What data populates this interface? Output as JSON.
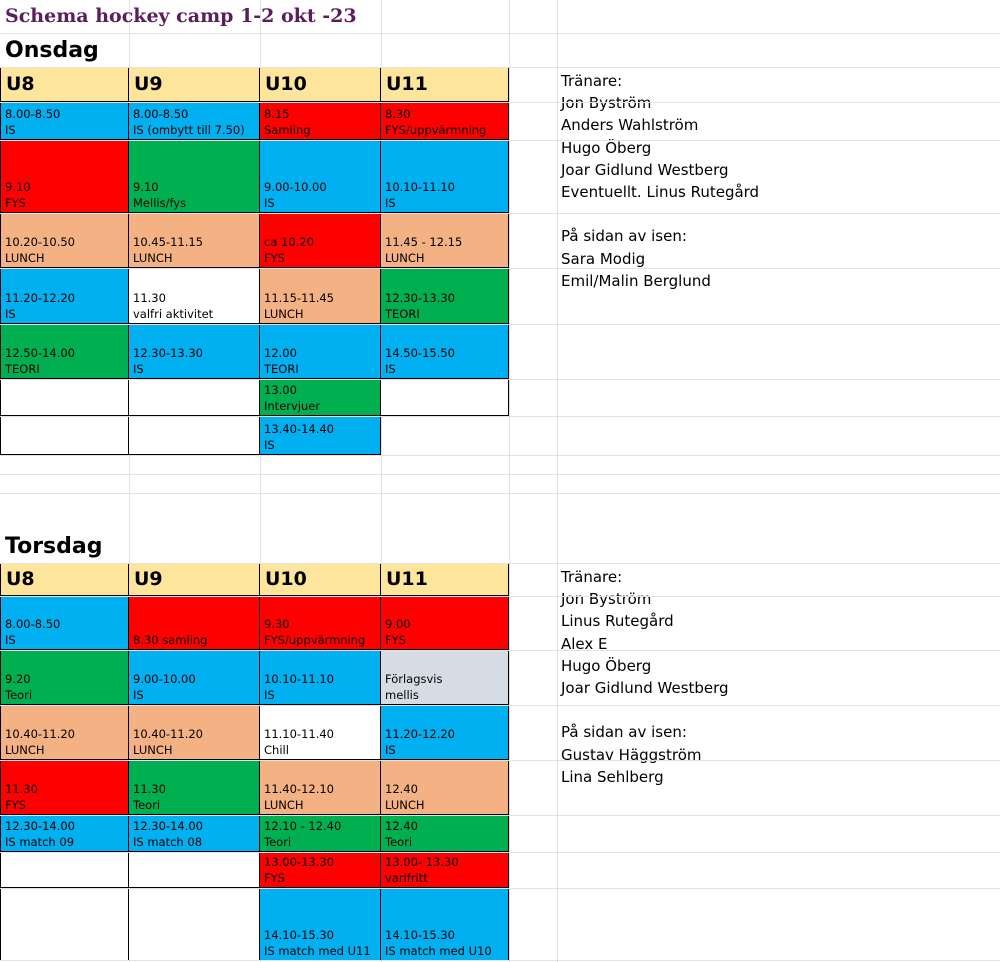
{
  "title": "Schema hockey camp 1-2 okt -23",
  "colors": {
    "blue": "#00b0f0",
    "red": "#ff0000",
    "green": "#00b050",
    "peach": "#f4b183",
    "white": "#ffffff",
    "grey": "#d6dce4",
    "header": "#fde59b"
  },
  "onsdag": {
    "day": "Onsdag",
    "headers": [
      "U8",
      "U9",
      "U10",
      "U11"
    ],
    "cells": [
      {
        "l1": "8.00-8.50",
        "l2": "IS",
        "color": "blue"
      },
      {
        "l1": "8.00-8.50",
        "l2": "IS (ombytt till 7.50)",
        "color": "blue"
      },
      {
        "l1": "8.15",
        "l2": "Samling",
        "color": "red"
      },
      {
        "l1": "8.30",
        "l2": "FYS/uppvärmning",
        "color": "red"
      },
      {
        "l1": "9.10",
        "l2": "FYS",
        "color": "red"
      },
      {
        "l1": "9.10",
        "l2": "Mellis/fys",
        "color": "green"
      },
      {
        "l1": "9.00-10.00",
        "l2": "IS",
        "color": "blue"
      },
      {
        "l1": "10.10-11.10",
        "l2": "IS",
        "color": "blue"
      },
      {
        "l1": "10.20-10.50",
        "l2": "LUNCH",
        "color": "peach"
      },
      {
        "l1": "10.45-11.15",
        "l2": "LUNCH",
        "color": "peach"
      },
      {
        "l1": "ca 10.20",
        "l2": "FYS",
        "color": "red"
      },
      {
        "l1": "11.45 - 12.15",
        "l2": "LUNCH",
        "color": "peach"
      },
      {
        "l1": "11.20-12.20",
        "l2": "IS",
        "color": "blue"
      },
      {
        "l1": "11.30",
        "l2": "valfri aktivitet",
        "color": "white"
      },
      {
        "l1": "11.15-11.45",
        "l2": "LUNCH",
        "color": "peach"
      },
      {
        "l1": "12.30-13.30",
        "l2": "TEORI",
        "color": "green"
      },
      {
        "l1": "12.50-14.00",
        "l2": "TEORI",
        "color": "green"
      },
      {
        "l1": "12.30-13.30",
        "l2": "IS",
        "color": "blue"
      },
      {
        "l1": "12.00",
        "l2": "TEORI",
        "color": "blue"
      },
      {
        "l1": "14.50-15.50",
        "l2": "IS",
        "color": "blue"
      },
      {
        "l1": "",
        "l2": "",
        "color": "white"
      },
      {
        "l1": "",
        "l2": "",
        "color": "white"
      },
      {
        "l1": "13.00",
        "l2": "Intervjuer",
        "color": "green"
      },
      {
        "l1": "",
        "l2": "",
        "color": "white"
      },
      {
        "l1": "",
        "l2": "",
        "color": "white"
      },
      {
        "l1": "",
        "l2": "",
        "color": "white"
      },
      {
        "l1": "13.40-14.40",
        "l2": "IS",
        "color": "blue"
      }
    ],
    "notes": [
      "Tränare:",
      "Jon Byström",
      "Anders Wahlström",
      "Hugo Öberg",
      "Joar Gidlund Westberg",
      "Eventuellt. Linus Rutegård",
      "",
      "På sidan av isen:",
      "Sara Modig",
      "Emil/Malin Berglund"
    ]
  },
  "torsdag": {
    "day": "Torsdag",
    "headers": [
      "U8",
      "U9",
      "U10",
      "U11"
    ],
    "cells": [
      {
        "l1": "8.00-8.50",
        "l2": "IS",
        "color": "blue"
      },
      {
        "l1": "",
        "l2": "8.30 samling",
        "color": "red"
      },
      {
        "l1": "9.30",
        "l2": "FYS/uppvärmning",
        "color": "red"
      },
      {
        "l1": "9.00",
        "l2": "FYS",
        "color": "red"
      },
      {
        "l1": "9.20",
        "l2": "Teori",
        "color": "green"
      },
      {
        "l1": "9.00-10.00",
        "l2": "IS",
        "color": "blue"
      },
      {
        "l1": "10.10-11.10",
        "l2": "IS",
        "color": "blue"
      },
      {
        "l1": "Förlagsvis",
        "l2": "mellis",
        "color": "grey"
      },
      {
        "l1": "10.40-11.20",
        "l2": "LUNCH",
        "color": "peach"
      },
      {
        "l1": "10.40-11.20",
        "l2": "LUNCH",
        "color": "peach"
      },
      {
        "l1": "11.10-11.40",
        "l2": "Chill",
        "color": "white"
      },
      {
        "l1": "11.20-12.20",
        "l2": "IS",
        "color": "blue"
      },
      {
        "l1": "11.30",
        "l2": "FYS",
        "color": "red"
      },
      {
        "l1": "11.30",
        "l2": "Teori",
        "color": "green"
      },
      {
        "l1": "11.40-12.10",
        "l2": "LUNCH",
        "color": "peach"
      },
      {
        "l1": "12.40",
        "l2": "LUNCH",
        "color": "peach"
      },
      {
        "l1": "12.30-14.00",
        "l2": "IS match  09",
        "color": "blue"
      },
      {
        "l1": "12.30-14.00",
        "l2": "IS match  08",
        "color": "blue"
      },
      {
        "l1": "12.10 - 12.40",
        "l2": "Teori",
        "color": "green"
      },
      {
        "l1": "12.40",
        "l2": "Teori",
        "color": "green"
      },
      {
        "l1": "",
        "l2": "",
        "color": "white"
      },
      {
        "l1": "",
        "l2": "",
        "color": "white"
      },
      {
        "l1": "13.00-13.30",
        "l2": "FYS",
        "color": "red"
      },
      {
        "l1": "13.00- 13.30",
        "l2": "varifritt",
        "color": "red"
      },
      {
        "l1": "",
        "l2": "",
        "color": "white"
      },
      {
        "l1": "",
        "l2": "",
        "color": "white"
      },
      {
        "l1": "14.10-15.30",
        "l2": "IS match med U11",
        "color": "blue"
      },
      {
        "l1": "14.10-15.30",
        "l2": "IS match med U10",
        "color": "blue"
      }
    ],
    "notes": [
      "Tränare:",
      "Jon Byström",
      "Linus Rutegård",
      "Alex E",
      "Hugo Öberg",
      "Joar Gidlund Westberg",
      "",
      "På sidan av isen:",
      "Gustav Häggström",
      "Lina Sehlberg"
    ]
  }
}
